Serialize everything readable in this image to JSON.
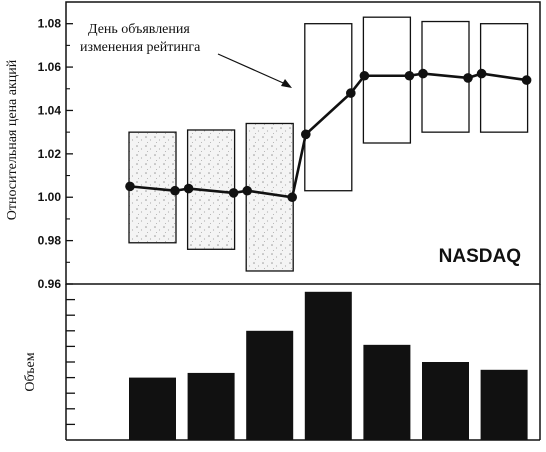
{
  "chart_data": [
    {
      "type": "line",
      "ylabel": "Относительная цена акций",
      "ylim": [
        0.96,
        1.09
      ],
      "yticks": [
        "0.96",
        "0.98",
        "1.00",
        "1.02",
        "1.04",
        "1.06",
        "1.08"
      ],
      "annotation": "День объявления изменения рейтинга",
      "label": "NASDAQ",
      "series": [
        {
          "x": [
            1,
            2,
            3,
            4,
            5,
            6,
            7,
            8,
            9,
            10,
            11,
            12,
            13,
            14
          ],
          "values": [
            1.005,
            1.003,
            1.004,
            1.002,
            1.003,
            1.0,
            1.029,
            1.048,
            1.056,
            1.056,
            1.057,
            1.055,
            1.057,
            1.054
          ]
        }
      ],
      "boxes": [
        {
          "low": 0.979,
          "high": 1.03,
          "pattern": true
        },
        {
          "low": 0.976,
          "high": 1.031,
          "pattern": true
        },
        {
          "low": 0.966,
          "high": 1.034,
          "pattern": true
        },
        {
          "low": 1.003,
          "high": 1.08,
          "pattern": false
        },
        {
          "low": 1.025,
          "high": 1.083,
          "pattern": false
        },
        {
          "low": 1.03,
          "high": 1.081,
          "pattern": false
        },
        {
          "low": 1.03,
          "high": 1.08,
          "pattern": false
        }
      ]
    },
    {
      "type": "bar",
      "ylabel": "Объем",
      "ylim": [
        0,
        10
      ],
      "values": [
        4.0,
        4.3,
        7.0,
        9.5,
        6.1,
        5.0,
        4.5
      ]
    }
  ]
}
